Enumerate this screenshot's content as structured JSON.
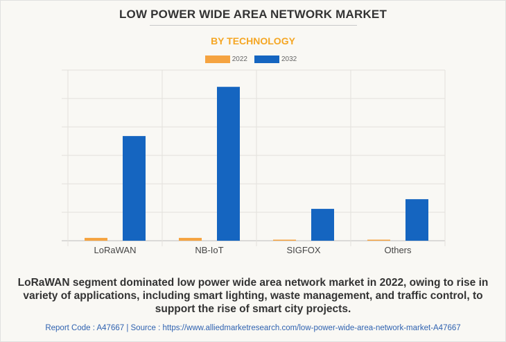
{
  "header": {
    "title": "LOW POWER WIDE AREA NETWORK MARKET",
    "subtitle": "BY TECHNOLOGY"
  },
  "chart_data": {
    "type": "bar",
    "title": "LOW POWER WIDE AREA NETWORK MARKET",
    "subtitle": "BY TECHNOLOGY",
    "xlabel": "",
    "ylabel": "",
    "categories": [
      "LoRaWAN",
      "NB-IoT",
      "SIGFOX",
      "Others"
    ],
    "series": [
      {
        "name": "2022",
        "color": "#f5a340",
        "values": [
          0.1,
          0.1,
          0.02,
          0.02
        ]
      },
      {
        "name": "2032",
        "color": "#1565c0",
        "values": [
          3.68,
          5.41,
          1.12,
          1.46
        ]
      }
    ],
    "ylim": [
      0,
      6
    ],
    "grid": true,
    "y_tick_labels_shown": false,
    "legend_position": "top-center"
  },
  "caption": "LoRaWAN segment dominated low power wide area network market in 2022, owing to rise in variety of applications, including smart lighting, waste management, and traffic control, to support the rise of smart city projects.",
  "footer": "Report Code : A47667  |  Source : https://www.alliedmarketresearch.com/low-power-wide-area-network-market-A47667"
}
